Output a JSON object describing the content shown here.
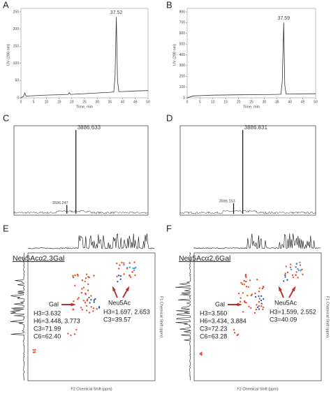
{
  "chart_data": [
    {
      "type": "line",
      "label": "A",
      "xlabel": "Time, min",
      "ylabel": "UV (280 nm)",
      "color": "#333333",
      "x": [
        0,
        1,
        1.5,
        2,
        5,
        10,
        15,
        18.5,
        19,
        19.5,
        25,
        30,
        35,
        36.5,
        37,
        37.52,
        38,
        38.5,
        40,
        45,
        50
      ],
      "values": [
        0,
        4,
        14,
        5,
        6,
        8,
        9,
        10,
        15,
        10,
        12,
        14,
        16,
        17,
        60,
        235,
        50,
        18,
        18,
        20,
        21
      ],
      "peak_index": 15,
      "xlim": [
        0,
        50
      ],
      "ylim": [
        0,
        250
      ],
      "xticks": [
        0,
        5,
        10,
        15,
        20,
        25,
        30,
        35,
        40,
        45,
        50
      ],
      "yticks": [
        0,
        50,
        100,
        150,
        200,
        250
      ]
    },
    {
      "type": "line",
      "label": "B",
      "xlabel": "Time, min",
      "ylabel": "UV (280 nm)",
      "color": "#333333",
      "x": [
        0,
        2,
        3,
        5,
        10,
        20,
        30,
        35,
        36.5,
        37,
        37.59,
        38,
        38.5,
        40,
        45,
        50
      ],
      "values": [
        0,
        15,
        18,
        20,
        25,
        28,
        30,
        32,
        33,
        150,
        700,
        120,
        35,
        35,
        37,
        38
      ],
      "peak_index": 10,
      "xlim": [
        0,
        50
      ],
      "ylim": [
        0,
        800
      ],
      "xticks": [
        0,
        5,
        10,
        15,
        20,
        25,
        30,
        35,
        40,
        45,
        50
      ],
      "yticks": [
        0,
        100,
        200,
        300,
        400,
        500,
        600,
        700,
        800
      ]
    },
    {
      "type": "spectrum",
      "label": "C",
      "color": "#111111",
      "x": [
        3596.247,
        3886.633
      ],
      "values": [
        12,
        100
      ],
      "xlim": [
        1900,
        6200
      ],
      "ylim": [
        0,
        105
      ]
    },
    {
      "type": "spectrum",
      "label": "D",
      "color": "#111111",
      "x": [
        3596.153,
        3886.831
      ],
      "values": [
        14,
        100
      ],
      "xlim": [
        1900,
        6200
      ],
      "ylim": [
        0,
        105
      ]
    },
    {
      "type": "nmr",
      "label": "E",
      "title": "Neu5Acα2,3Gal",
      "xlabel": "F2 Chemical Shift (ppm)",
      "ylabel": "F1 Chemical Shift (ppm)",
      "gal": [
        "Gal",
        "H3=3.632",
        "H6=3.448, 3.773",
        "C3=71.99",
        "C6=62.40"
      ],
      "neu": [
        "Neu5Ac",
        "H3=1.697, 2.653",
        "C3=39.57"
      ]
    },
    {
      "type": "nmr",
      "label": "F",
      "title": "Neu5Acα2,6Gal",
      "xlabel": "F2 Chemical Shift (ppm)",
      "ylabel": "F1 Chemical Shift (ppm)",
      "gal": [
        "Gal",
        "H3=3.560",
        "H6=3.434, 3.884",
        "C3=72.23",
        "C6=63.28"
      ],
      "neu": [
        "Neu5Ac",
        "H3=1.599, 2.552",
        "C3=40.09"
      ]
    }
  ]
}
